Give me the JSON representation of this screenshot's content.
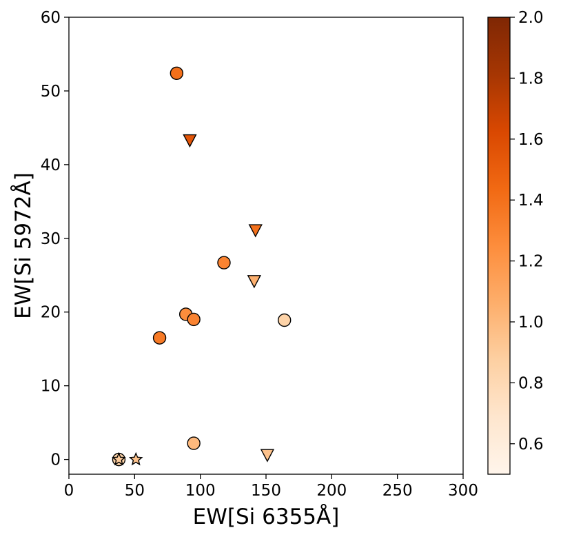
{
  "chart_data": {
    "type": "scatter",
    "xlabel": "EW[Si 6355Å]",
    "ylabel": "EW[Si 5972Å]",
    "xlim": [
      0,
      300
    ],
    "ylim": [
      -2,
      60
    ],
    "x_ticks": [
      0,
      50,
      100,
      150,
      200,
      250,
      300
    ],
    "y_ticks": [
      0,
      10,
      20,
      30,
      40,
      50,
      60
    ],
    "grid": false,
    "colorbar": {
      "range": [
        0.5,
        2.0
      ],
      "ticks": [
        "0.6",
        "0.8",
        "1.0",
        "1.2",
        "1.4",
        "1.6",
        "1.8",
        "2.0"
      ],
      "colormap": "Oranges",
      "colors": [
        "#fff5eb",
        "#fee6ce",
        "#fdd0a2",
        "#fdae6b",
        "#fd8d3c",
        "#f16913",
        "#d94801",
        "#a63603",
        "#7f2704"
      ]
    },
    "series": [
      {
        "marker": "circle",
        "points": [
          {
            "x": 82,
            "y": 52.4,
            "c": 1.4
          },
          {
            "x": 118,
            "y": 26.7,
            "c": 1.3
          },
          {
            "x": 89,
            "y": 19.7,
            "c": 1.25
          },
          {
            "x": 95,
            "y": 19.0,
            "c": 1.3
          },
          {
            "x": 69,
            "y": 16.5,
            "c": 1.35
          },
          {
            "x": 164,
            "y": 18.9,
            "c": 0.85
          },
          {
            "x": 95,
            "y": 2.2,
            "c": 1.0
          },
          {
            "x": 38,
            "y": 0.0,
            "c": 0.85
          }
        ]
      },
      {
        "marker": "triangle-down",
        "points": [
          {
            "x": 92,
            "y": 43.3,
            "c": 1.55
          },
          {
            "x": 142,
            "y": 31.1,
            "c": 1.4
          },
          {
            "x": 141,
            "y": 24.2,
            "c": 1.05
          },
          {
            "x": 151,
            "y": 0.6,
            "c": 0.95
          }
        ]
      },
      {
        "marker": "star",
        "points": [
          {
            "x": 38,
            "y": 0.0,
            "c": 0.9
          },
          {
            "x": 51,
            "y": 0.0,
            "c": 0.95
          }
        ]
      }
    ]
  }
}
